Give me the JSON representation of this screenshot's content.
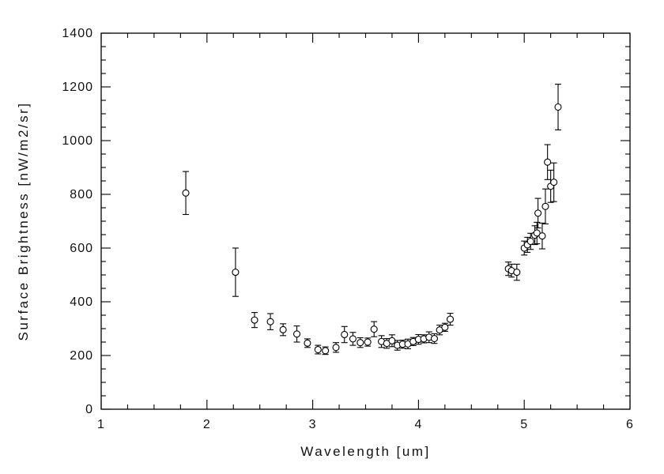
{
  "figure": {
    "background": "#ffffff",
    "axis_color": "#000000",
    "text_color": "#111111"
  },
  "chart_data": {
    "type": "scatter",
    "title": "",
    "xlabel": "Wavelength [um]",
    "ylabel": "Surface Brightness [nW/m2/sr]",
    "xlim": [
      1,
      6
    ],
    "ylim": [
      0,
      1400
    ],
    "x_ticks": [
      1,
      2,
      3,
      4,
      5,
      6
    ],
    "y_ticks": [
      0,
      200,
      400,
      600,
      800,
      1000,
      1200,
      1400
    ],
    "x_minor_interval": 0.25,
    "y_minor_interval": 50,
    "grid": false,
    "legend": null,
    "marker": "open-circle",
    "error_bars": true,
    "series": [
      {
        "name": "surface-brightness",
        "points": [
          [
            1.8,
            805,
            80
          ],
          [
            2.27,
            510,
            90
          ],
          [
            2.45,
            332,
            28
          ],
          [
            2.6,
            326,
            30
          ],
          [
            2.72,
            296,
            22
          ],
          [
            2.85,
            280,
            30
          ],
          [
            2.95,
            246,
            16
          ],
          [
            3.05,
            222,
            16
          ],
          [
            3.12,
            218,
            14
          ],
          [
            3.22,
            230,
            18
          ],
          [
            3.3,
            278,
            30
          ],
          [
            3.38,
            262,
            24
          ],
          [
            3.45,
            248,
            18
          ],
          [
            3.52,
            250,
            15
          ],
          [
            3.58,
            298,
            28
          ],
          [
            3.65,
            252,
            22
          ],
          [
            3.7,
            245,
            18
          ],
          [
            3.75,
            255,
            22
          ],
          [
            3.8,
            238,
            18
          ],
          [
            3.85,
            242,
            15
          ],
          [
            3.9,
            243,
            18
          ],
          [
            3.95,
            252,
            15
          ],
          [
            4.0,
            260,
            18
          ],
          [
            4.05,
            262,
            15
          ],
          [
            4.1,
            268,
            20
          ],
          [
            4.15,
            263,
            18
          ],
          [
            4.2,
            295,
            18
          ],
          [
            4.25,
            305,
            15
          ],
          [
            4.3,
            335,
            22
          ],
          [
            4.85,
            523,
            25
          ],
          [
            4.88,
            516,
            24
          ],
          [
            4.93,
            510,
            30
          ],
          [
            5.0,
            600,
            26
          ],
          [
            5.03,
            612,
            28
          ],
          [
            5.06,
            625,
            30
          ],
          [
            5.1,
            648,
            35
          ],
          [
            5.12,
            656,
            40
          ],
          [
            5.13,
            730,
            55
          ],
          [
            5.17,
            645,
            48
          ],
          [
            5.2,
            755,
            65
          ],
          [
            5.22,
            920,
            65
          ],
          [
            5.25,
            830,
            60
          ],
          [
            5.28,
            845,
            72
          ],
          [
            5.32,
            1125,
            85
          ]
        ]
      }
    ]
  }
}
